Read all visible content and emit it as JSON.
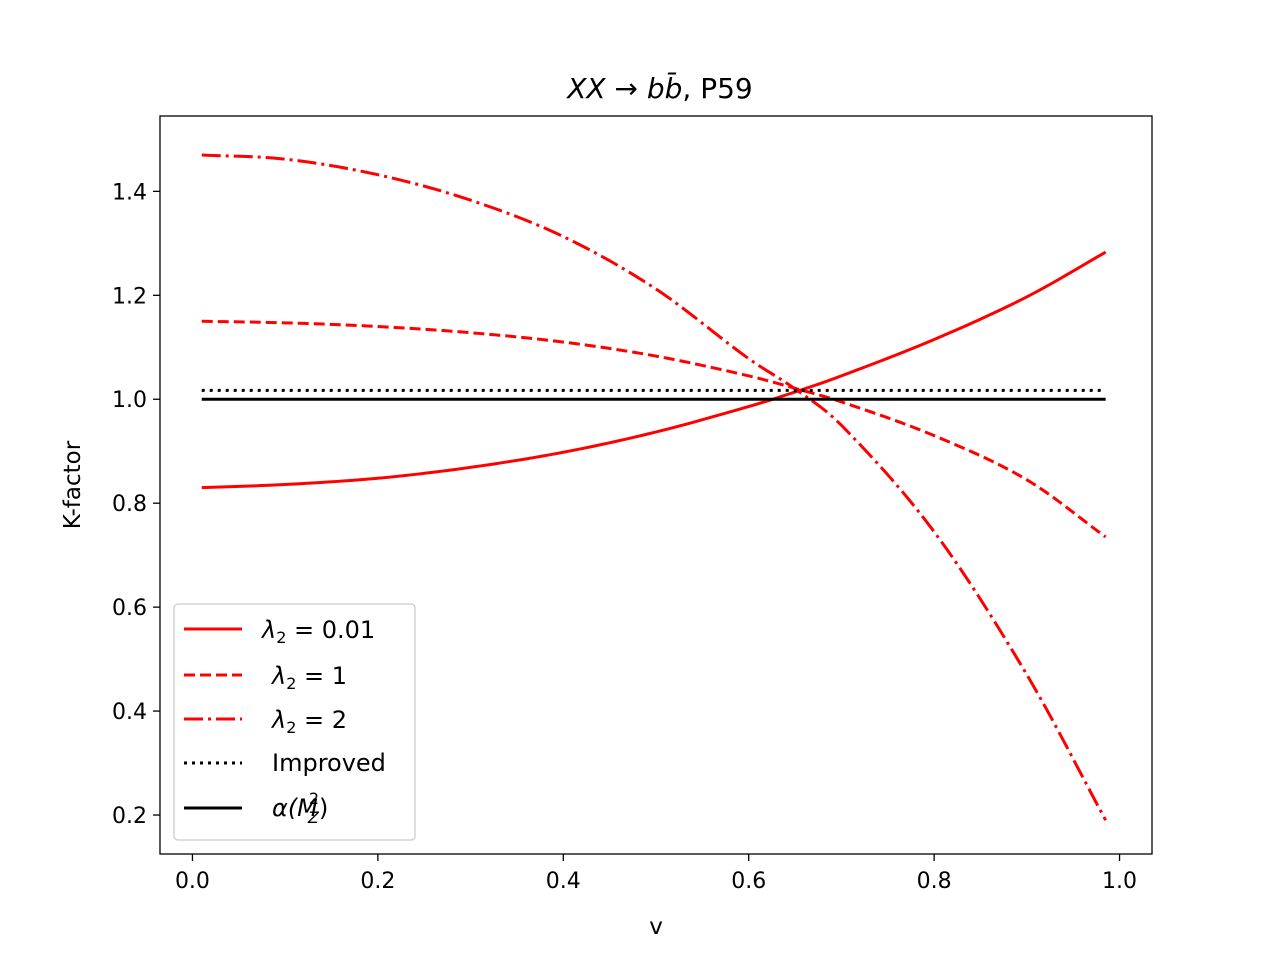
{
  "chart_data": {
    "type": "line",
    "title": {
      "math": "XX → b",
      "bbar": "b̄",
      "suffix": ", P59"
    },
    "xlabel": "v",
    "ylabel": "K-factor",
    "xlim": [
      -0.035,
      1.035
    ],
    "ylim": [
      0.125,
      1.545
    ],
    "xticks": [
      0.0,
      0.2,
      0.4,
      0.6,
      0.8,
      1.0
    ],
    "xtick_labels": [
      "0.0",
      "0.2",
      "0.4",
      "0.6",
      "0.8",
      "1.0"
    ],
    "yticks": [
      0.2,
      0.4,
      0.6,
      0.8,
      1.0,
      1.2,
      1.4
    ],
    "ytick_labels": [
      "0.2",
      "0.4",
      "0.6",
      "0.8",
      "1.0",
      "1.2",
      "1.4"
    ],
    "grid": false,
    "legend_position": "lower-left",
    "series": [
      {
        "name": "λ₂ = 0.01",
        "legend_sym": "λ",
        "legend_sub": "2",
        "legend_rest": " = 0.01",
        "color": "#ff0000",
        "dash": "solid",
        "x": [
          0.01,
          0.1,
          0.2,
          0.3,
          0.4,
          0.5,
          0.6,
          0.65,
          0.7,
          0.8,
          0.9,
          0.985
        ],
        "y": [
          0.83,
          0.836,
          0.848,
          0.869,
          0.898,
          0.937,
          0.986,
          1.014,
          1.045,
          1.115,
          1.197,
          1.283
        ]
      },
      {
        "name": "λ₂ = 1",
        "legend_sym": "λ",
        "legend_sub": "2",
        "legend_rest": " = 1",
        "color": "#ff0000",
        "dash": "dashed",
        "x": [
          0.01,
          0.1,
          0.2,
          0.3,
          0.4,
          0.5,
          0.6,
          0.65,
          0.7,
          0.8,
          0.9,
          0.985
        ],
        "y": [
          1.15,
          1.147,
          1.14,
          1.128,
          1.11,
          1.083,
          1.045,
          1.021,
          0.995,
          0.93,
          0.845,
          0.735
        ]
      },
      {
        "name": "λ₂ = 2",
        "legend_sym": "λ",
        "legend_sub": "2",
        "legend_rest": " = 2",
        "color": "#ff0000",
        "dash": "dashdot",
        "x": [
          0.01,
          0.1,
          0.2,
          0.3,
          0.4,
          0.5,
          0.6,
          0.65,
          0.7,
          0.8,
          0.9,
          0.985
        ],
        "y": [
          1.47,
          1.462,
          1.432,
          1.383,
          1.313,
          1.212,
          1.078,
          1.02,
          0.95,
          0.745,
          0.47,
          0.19
        ]
      },
      {
        "name": "Improved",
        "legend_text": "Improved",
        "color": "#000000",
        "dash": "dotted",
        "x": [
          0.01,
          0.985
        ],
        "y": [
          1.017,
          1.017
        ]
      },
      {
        "name": "α(M_Z²)",
        "legend_sym": "α(M",
        "legend_sub": "Z",
        "legend_sup": "2",
        "legend_rest": ")",
        "color": "#000000",
        "dash": "solid",
        "x": [
          0.01,
          0.985
        ],
        "y": [
          1.0,
          1.0
        ]
      }
    ]
  }
}
